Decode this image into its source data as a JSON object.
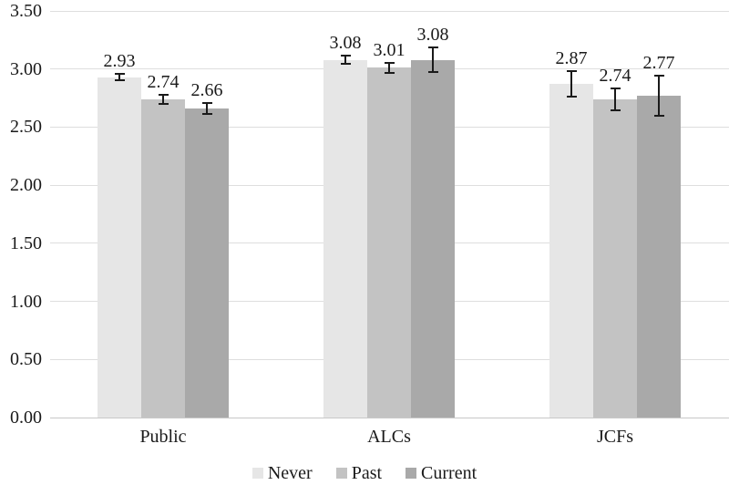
{
  "chart_data": {
    "type": "bar",
    "title": "",
    "categories": [
      "Public",
      "ALCs",
      "JCFs"
    ],
    "series": [
      {
        "name": "Never",
        "color": "#e6e6e6",
        "values": [
          2.93,
          3.08,
          2.87
        ],
        "labels": [
          "2.93",
          "3.08",
          "2.87"
        ],
        "errors": [
          0.03,
          0.035,
          0.11
        ]
      },
      {
        "name": "Past",
        "color": "#c3c3c3",
        "values": [
          2.74,
          3.01,
          2.74
        ],
        "labels": [
          "2.74",
          "3.01",
          "2.74"
        ],
        "errors": [
          0.04,
          0.04,
          0.095
        ]
      },
      {
        "name": "Current",
        "color": "#a9a9a9",
        "values": [
          2.66,
          3.08,
          2.77
        ],
        "labels": [
          "2.66",
          "3.08",
          "2.77"
        ],
        "errors": [
          0.05,
          0.105,
          0.17
        ]
      }
    ],
    "y_axis": {
      "ticks": [
        "0.00",
        "0.50",
        "1.00",
        "1.50",
        "2.00",
        "2.50",
        "3.00",
        "3.50"
      ],
      "min": 0,
      "max": 3.5,
      "step": 0.5
    },
    "grid": true,
    "error_bars": true,
    "legend": {
      "position": "bottom",
      "entries": [
        "Never",
        "Past",
        "Current"
      ]
    },
    "xlabel": "",
    "ylabel": ""
  },
  "colors": {
    "background": "#ffffff",
    "gridline": "#dedede",
    "axis_line": "#c8c8c8",
    "text": "#1a1a1a",
    "error_bar": "#1a1a1a"
  }
}
